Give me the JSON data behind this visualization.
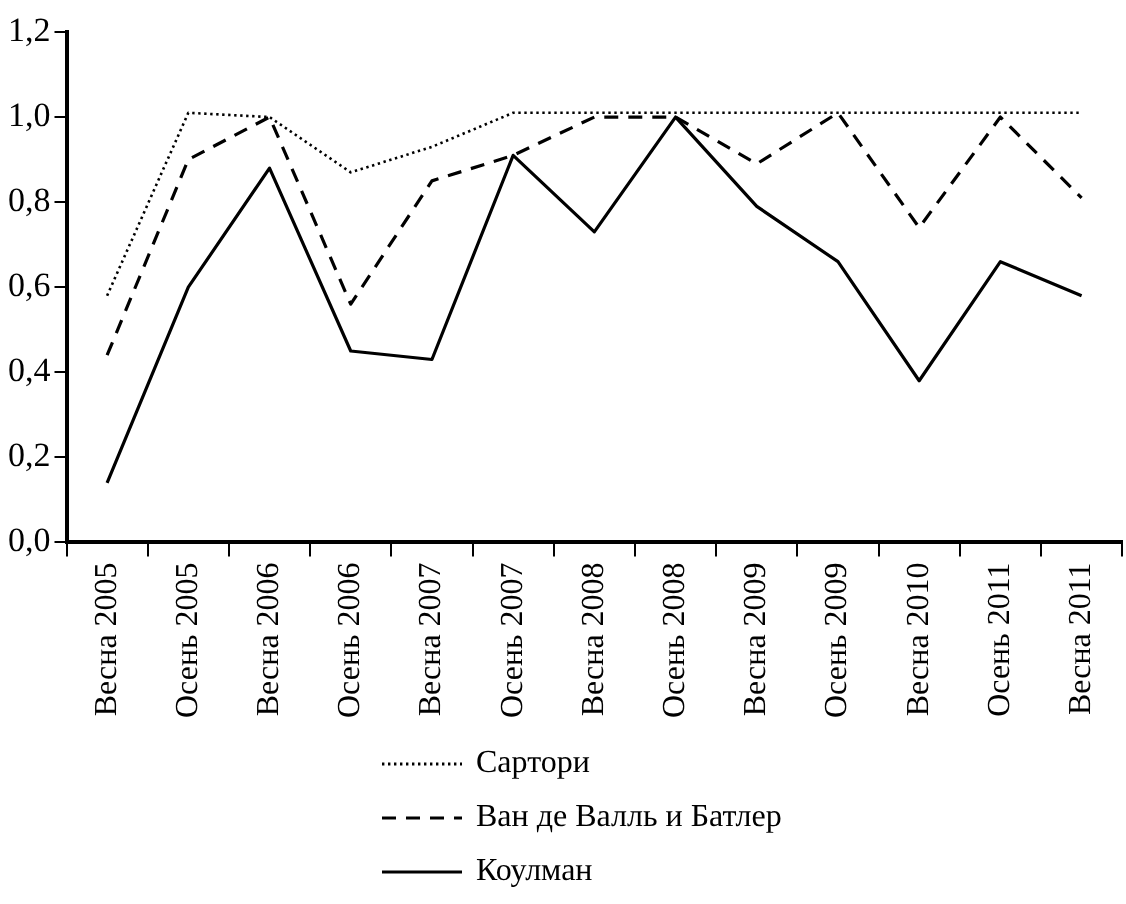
{
  "chart_data": {
    "type": "line",
    "categories": [
      "Весна 2005",
      "Осень 2005",
      "Весна 2006",
      "Осень 2006",
      "Весна 2007",
      "Осень 2007",
      "Весна 2008",
      "Осень 2008",
      "Весна 2009",
      "Осень 2009",
      "Весна 2010",
      "Осень 2011",
      "Весна 2011"
    ],
    "series": [
      {
        "name": "Сартори",
        "color": "#000000",
        "line_style": "dotted",
        "values": [
          0.58,
          1.01,
          1.0,
          0.87,
          0.93,
          1.01,
          1.01,
          1.01,
          1.01,
          1.01,
          1.01,
          1.01,
          1.01
        ]
      },
      {
        "name": "Ван де Валль и Батлер",
        "color": "#000000",
        "line_style": "dashed",
        "values": [
          0.44,
          0.9,
          1.0,
          0.56,
          0.85,
          0.91,
          1.0,
          1.0,
          0.89,
          1.01,
          0.74,
          1.0,
          0.81
        ]
      },
      {
        "name": "Коулман",
        "color": "#000000",
        "line_style": "solid",
        "values": [
          0.14,
          0.6,
          0.88,
          0.45,
          0.43,
          0.91,
          0.73,
          1.0,
          0.79,
          0.66,
          0.38,
          0.66,
          0.58
        ]
      }
    ],
    "ylim": [
      0,
      1.2
    ],
    "yticks": [
      {
        "value": 0,
        "label": "0,0"
      },
      {
        "value": 0.2,
        "label": "0,2"
      },
      {
        "value": 0.4,
        "label": "0,4"
      },
      {
        "value": 0.6,
        "label": "0,6"
      },
      {
        "value": 0.8,
        "label": "0,8"
      },
      {
        "value": 1.0,
        "label": "1,0"
      },
      {
        "value": 1.2,
        "label": "1,2"
      }
    ],
    "grid": false,
    "legend": "bottom",
    "marker": "none"
  }
}
